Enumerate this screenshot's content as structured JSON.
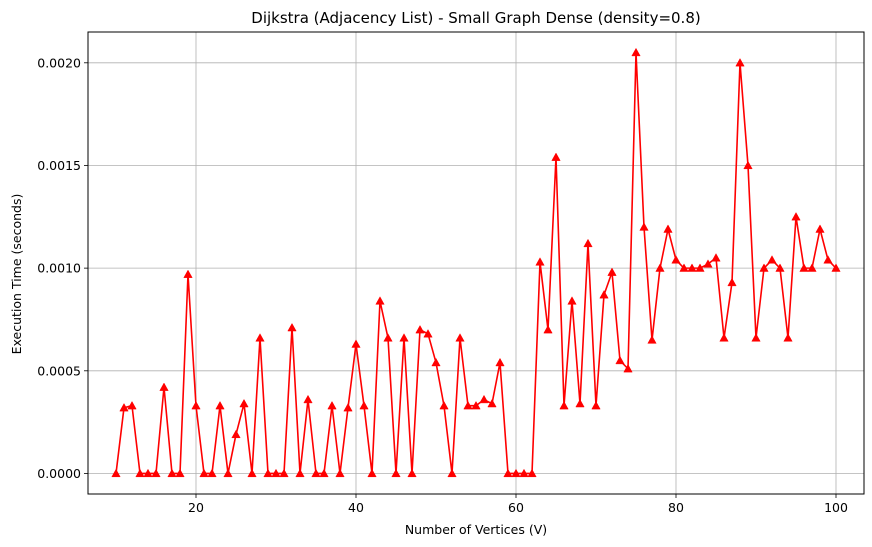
{
  "chart_data": {
    "type": "line",
    "title": "Dijkstra (Adjacency List) - Small Graph Dense (density=0.8)",
    "xlabel": "Number of Vertices (V)",
    "ylabel": "Execution Time (seconds)",
    "xlim": [
      6.5,
      103.5
    ],
    "ylim": [
      -0.0001,
      0.00215
    ],
    "xticks": [
      20,
      40,
      60,
      80,
      100
    ],
    "xtick_labels": [
      "20",
      "40",
      "60",
      "80",
      "100"
    ],
    "yticks": [
      0,
      0.0005,
      0.001,
      0.0015,
      0.002
    ],
    "ytick_labels": [
      "0.0000",
      "0.0005",
      "0.0010",
      "0.0015",
      "0.0020"
    ],
    "grid": true,
    "series": [
      {
        "color": "#ff0000",
        "marker": "triangle-up",
        "x": [
          10,
          11,
          12,
          13,
          14,
          15,
          16,
          17,
          18,
          19,
          20,
          21,
          22,
          23,
          24,
          25,
          26,
          27,
          28,
          29,
          30,
          31,
          32,
          33,
          34,
          35,
          36,
          37,
          38,
          39,
          40,
          41,
          42,
          43,
          44,
          45,
          46,
          47,
          48,
          49,
          50,
          51,
          52,
          53,
          54,
          55,
          56,
          57,
          58,
          59,
          60,
          61,
          62,
          63,
          64,
          65,
          66,
          67,
          68,
          69,
          70,
          71,
          72,
          73,
          74,
          75,
          76,
          77,
          78,
          79,
          80,
          81,
          82,
          83,
          84,
          85,
          86,
          87,
          88,
          89,
          90,
          91,
          92,
          93,
          94,
          95,
          96,
          97,
          98,
          99,
          100
        ],
        "values": [
          0,
          0.00032,
          0.00033,
          0,
          0,
          0,
          0.00042,
          0,
          0,
          0.00097,
          0.00033,
          0,
          0,
          0.00033,
          0,
          0.00019,
          0.00034,
          0,
          0.00066,
          0,
          0,
          0,
          0.00071,
          0,
          0.00036,
          0,
          0,
          0.00033,
          0,
          0.00032,
          0.00063,
          0.00033,
          0,
          0.00084,
          0.00066,
          0,
          0.00066,
          0,
          0.0007,
          0.00068,
          0.00054,
          0.00033,
          0,
          0.00066,
          0.00033,
          0.00033,
          0.00036,
          0.00034,
          0.00054,
          0,
          0,
          0,
          0,
          0.00103,
          0.0007,
          0.00154,
          0.00033,
          0.00084,
          0.00034,
          0.00112,
          0.00033,
          0.00087,
          0.00098,
          0.00055,
          0.00051,
          0.00205,
          0.0012,
          0.00065,
          0.001,
          0.00119,
          0.00104,
          0.001,
          0.001,
          0.001,
          0.00102,
          0.00105,
          0.00066,
          0.00093,
          0.002,
          0.0015,
          0.00066,
          0.001,
          0.00104,
          0.001,
          0.00066,
          0.00125,
          0.001,
          0.001,
          0.00119,
          0.00104,
          0.001
        ]
      }
    ]
  }
}
